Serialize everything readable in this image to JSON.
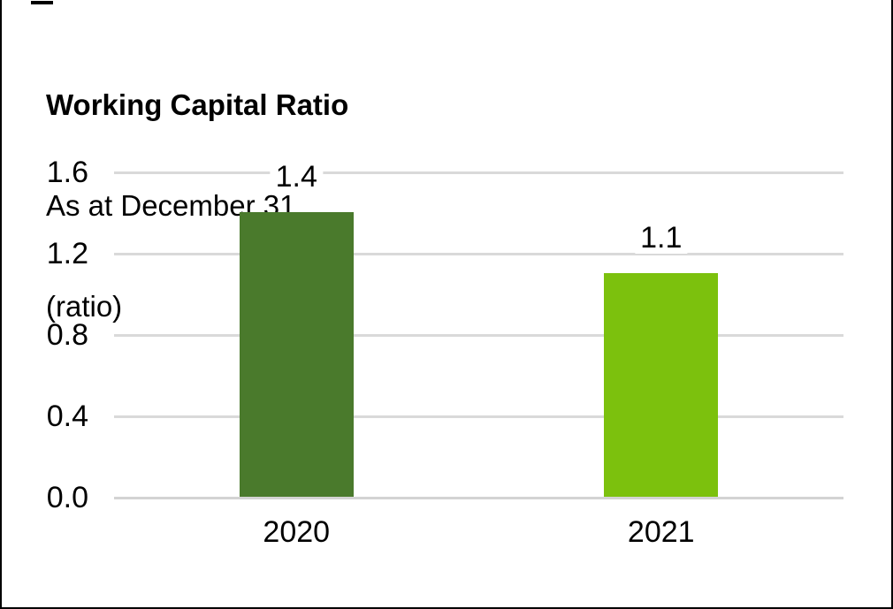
{
  "header": {
    "title": "Working Capital Ratio",
    "subtitle": "As at December 31",
    "unit_label": "(ratio)"
  },
  "chart_data": {
    "type": "bar",
    "title": "Working Capital Ratio",
    "subtitle": "As at December 31",
    "ylabel": "(ratio)",
    "xlabel": "",
    "categories": [
      "2020",
      "2021"
    ],
    "values": [
      1.4,
      1.1
    ],
    "data_labels": [
      "1.4",
      "1.1"
    ],
    "bar_colors": [
      "#4a7a2c",
      "#7cc10d"
    ],
    "ylim": [
      0,
      1.6
    ],
    "yticks": [
      0,
      0.4,
      0.8,
      1.2,
      1.6
    ],
    "ytick_labels": [
      "0.0",
      "0.4",
      "0.8",
      "1.2",
      "1.6"
    ],
    "grid": true,
    "gridline_color": "#d9d9d9",
    "baseline_color": "#d3d3d3",
    "legend_position": "none",
    "text_color": "#000000",
    "background_color": "#ffffff",
    "border_color": "#000000"
  }
}
